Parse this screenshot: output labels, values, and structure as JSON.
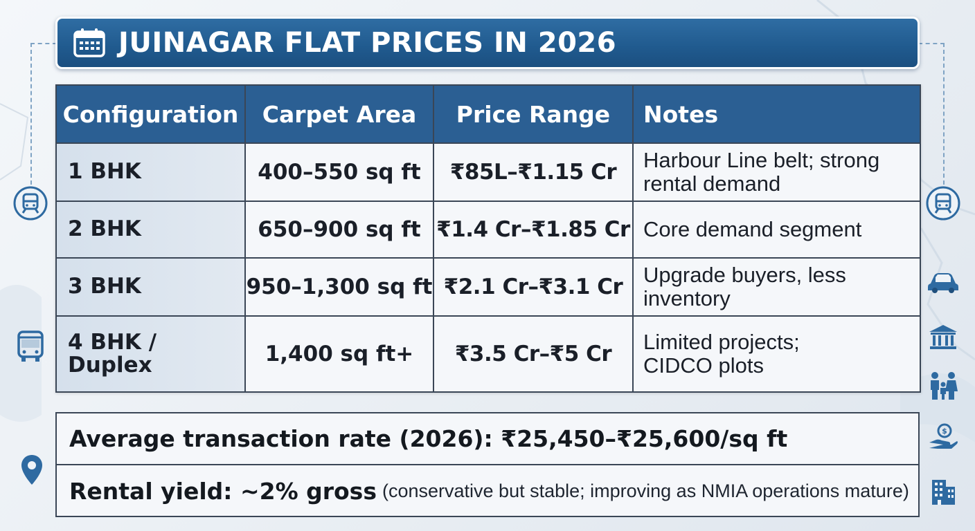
{
  "title": "JUINAGAR FLAT PRICES IN 2026",
  "table": {
    "headers": [
      "Configuration",
      "Carpet Area",
      "Price Range",
      "Notes"
    ],
    "rows": [
      {
        "config": "1 BHK",
        "area": "400–550 sq ft",
        "price": "₹85L–₹1.15 Cr",
        "notes": "Harbour Line belt; strong rental demand"
      },
      {
        "config": "2 BHK",
        "area": "650–900 sq ft",
        "price": "₹1.4 Cr–₹1.85 Cr",
        "notes": "Core demand segment"
      },
      {
        "config": "3 BHK",
        "area": "950–1,300 sq ft",
        "price": "₹2.1 Cr–₹3.1 Cr",
        "notes": "Upgrade buyers, less inventory"
      },
      {
        "config": "4 BHK / Duplex",
        "area": "1,400 sq ft+",
        "price": "₹3.5 Cr–₹5 Cr",
        "notes": "Limited projects; CIDCO plots"
      }
    ]
  },
  "summary": {
    "avg_rate": "Average transaction rate (2026): ₹25,450–₹25,600/sq ft",
    "rental_main": "Rental yield: ~2% gross",
    "rental_note": "(conservative but stable; improving as NMIA operations mature)"
  },
  "icons": {
    "title": "calendar-icon",
    "left": [
      "train-icon",
      "bus-icon",
      "location-pin-icon"
    ],
    "right": [
      "train-icon",
      "car-icon",
      "bank-icon",
      "family-icon",
      "money-hand-icon",
      "building-icon"
    ]
  },
  "colors": {
    "header_blue": "#2b5f93",
    "title_blue": "#205a8e",
    "icon_blue": "#2e6aa1"
  }
}
